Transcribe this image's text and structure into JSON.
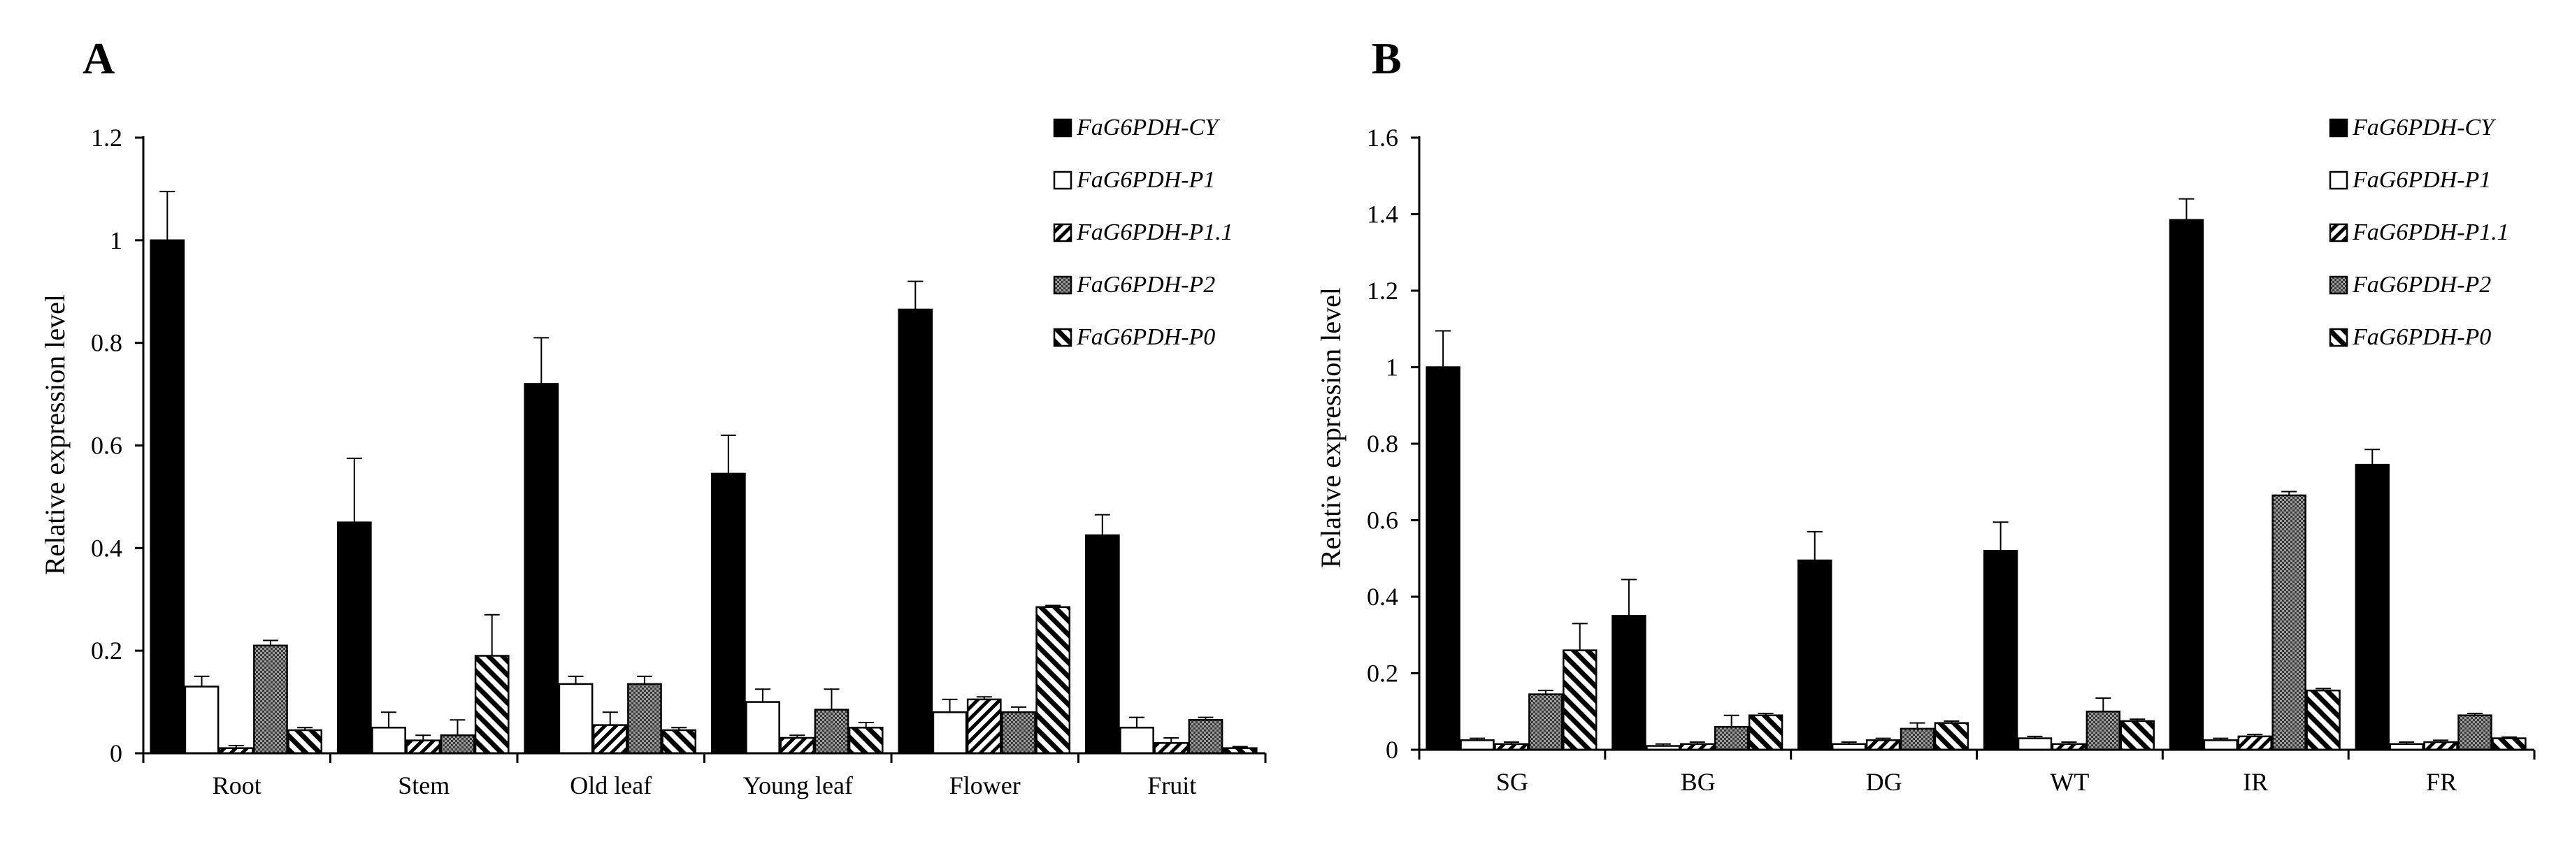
{
  "chart_data": [
    {
      "type": "bar",
      "panel_label": "A",
      "ylabel": "Relative expression level",
      "xlabel": "",
      "ylim": [
        0,
        1.2
      ],
      "ytick_step": 0.2,
      "yticks": [
        "0",
        "0.2",
        "0.4",
        "0.6",
        "0.8",
        "1",
        "1.2"
      ],
      "categories": [
        "Root",
        "Stem",
        "Old leaf",
        "Young leaf",
        "Flower",
        "Fruit"
      ],
      "legend_position": "top-right",
      "series": [
        {
          "name": "FaG6PDH-CY",
          "pattern": "solid",
          "values": [
            1.0,
            0.45,
            0.72,
            0.545,
            0.865,
            0.425
          ],
          "errors": [
            0.095,
            0.125,
            0.09,
            0.075,
            0.055,
            0.04
          ]
        },
        {
          "name": "FaG6PDH-P1",
          "pattern": "white",
          "values": [
            0.13,
            0.05,
            0.135,
            0.1,
            0.08,
            0.05
          ],
          "errors": [
            0.02,
            0.03,
            0.015,
            0.025,
            0.025,
            0.02
          ]
        },
        {
          "name": "FaG6PDH-P1.1",
          "pattern": "diag",
          "values": [
            0.01,
            0.025,
            0.055,
            0.03,
            0.105,
            0.02
          ],
          "errors": [
            0.005,
            0.01,
            0.025,
            0.005,
            0.005,
            0.01
          ]
        },
        {
          "name": "FaG6PDH-P2",
          "pattern": "cross",
          "values": [
            0.21,
            0.035,
            0.135,
            0.085,
            0.08,
            0.065
          ],
          "errors": [
            0.01,
            0.03,
            0.015,
            0.04,
            0.01,
            0.005
          ]
        },
        {
          "name": "FaG6PDH-P0",
          "pattern": "backdiag",
          "values": [
            0.045,
            0.19,
            0.045,
            0.05,
            0.285,
            0.01
          ],
          "errors": [
            0.005,
            0.08,
            0.005,
            0.01,
            0.003,
            0.003
          ]
        }
      ]
    },
    {
      "type": "bar",
      "panel_label": "B",
      "ylabel": "Relative expression level",
      "xlabel": "",
      "ylim": [
        0,
        1.6
      ],
      "ytick_step": 0.2,
      "yticks": [
        "0",
        "0.2",
        "0.4",
        "0.6",
        "0.8",
        "1",
        "1.2",
        "1.4",
        "1.6"
      ],
      "categories": [
        "SG",
        "BG",
        "DG",
        "WT",
        "IR",
        "FR"
      ],
      "legend_position": "top-right",
      "series": [
        {
          "name": "FaG6PDH-CY",
          "pattern": "solid",
          "values": [
            1.0,
            0.35,
            0.495,
            0.52,
            1.385,
            0.745
          ],
          "errors": [
            0.095,
            0.095,
            0.075,
            0.075,
            0.055,
            0.04
          ]
        },
        {
          "name": "FaG6PDH-P1",
          "pattern": "white",
          "values": [
            0.025,
            0.01,
            0.015,
            0.03,
            0.025,
            0.015
          ],
          "errors": [
            0.005,
            0.005,
            0.005,
            0.005,
            0.005,
            0.005
          ]
        },
        {
          "name": "FaG6PDH-P1.1",
          "pattern": "diag",
          "values": [
            0.015,
            0.015,
            0.025,
            0.015,
            0.035,
            0.02
          ],
          "errors": [
            0.005,
            0.005,
            0.005,
            0.005,
            0.005,
            0.005
          ]
        },
        {
          "name": "FaG6PDH-P2",
          "pattern": "cross",
          "values": [
            0.145,
            0.06,
            0.055,
            0.1,
            0.665,
            0.09
          ],
          "errors": [
            0.01,
            0.03,
            0.015,
            0.035,
            0.01,
            0.005
          ]
        },
        {
          "name": "FaG6PDH-P0",
          "pattern": "backdiag",
          "values": [
            0.26,
            0.09,
            0.07,
            0.075,
            0.155,
            0.03
          ],
          "errors": [
            0.07,
            0.005,
            0.005,
            0.005,
            0.005,
            0.003
          ]
        }
      ]
    }
  ]
}
